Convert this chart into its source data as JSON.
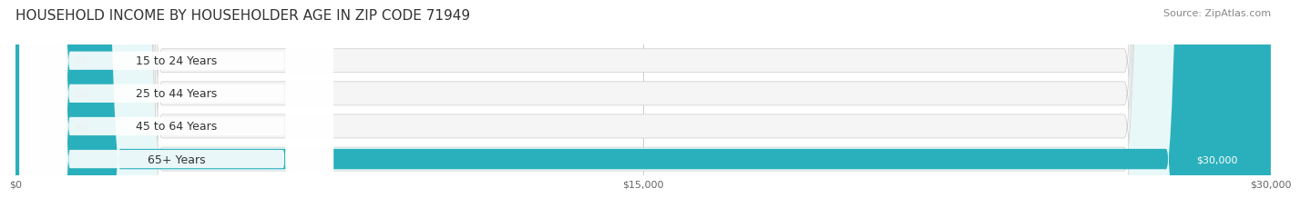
{
  "title": "HOUSEHOLD INCOME BY HOUSEHOLDER AGE IN ZIP CODE 71949",
  "source": "Source: ZipAtlas.com",
  "categories": [
    "15 to 24 Years",
    "25 to 44 Years",
    "45 to 64 Years",
    "65+ Years"
  ],
  "values": [
    0,
    0,
    0,
    30000
  ],
  "bar_colors": [
    "#e8878a",
    "#a8c4e0",
    "#b8a8d0",
    "#2ab0bc"
  ],
  "bar_bg_color": "#f0f0f0",
  "row_bg_colors": [
    "#f5f5f5",
    "#f5f5f5",
    "#f5f5f5",
    "#e8f8f8"
  ],
  "label_colors": [
    "#c87880",
    "#8098b8",
    "#9888b8",
    "#2ab0bc"
  ],
  "value_label_colors": [
    "#888888",
    "#888888",
    "#888888",
    "#ffffff"
  ],
  "xlim": [
    0,
    30000
  ],
  "xticks": [
    0,
    15000,
    30000
  ],
  "xtick_labels": [
    "$0",
    "$15,000",
    "$30,000"
  ],
  "title_fontsize": 11,
  "label_fontsize": 9,
  "value_fontsize": 8,
  "source_fontsize": 8,
  "background_color": "#ffffff"
}
